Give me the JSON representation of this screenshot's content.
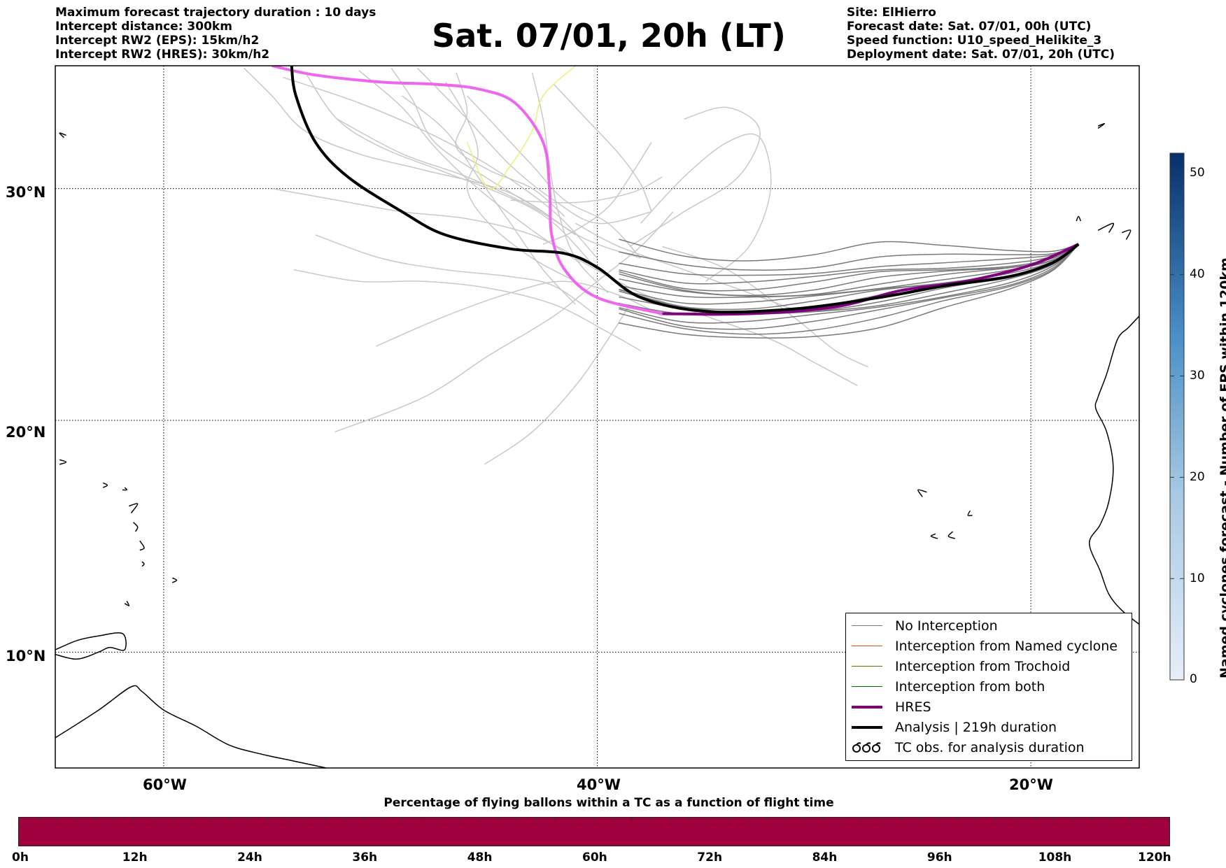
{
  "header": {
    "left_lines": [
      "Maximum forecast trajectory duration : 10 days",
      "Intercept distance: 300km",
      "Intercept RW2 (EPS):  15km/h2",
      "Intercept RW2 (HRES): 30km/h2"
    ],
    "title": "Sat. 07/01, 20h (LT)",
    "right_lines": [
      "Site: ElHierro",
      "Forecast date: Sat. 07/01, 00h (UTC)",
      "Speed function: U10_speed_Helikite_3",
      "Deployment date: Sat. 07/01, 20h (UTC)"
    ]
  },
  "map": {
    "lon_range": [
      -65,
      -15
    ],
    "lat_range": [
      5,
      35.3
    ],
    "lat_labels": [
      "30°N",
      "20°N",
      "10°N"
    ],
    "lat_values": [
      30,
      20,
      10
    ],
    "lon_labels": [
      "60°W",
      "40°W",
      "20°W"
    ],
    "lon_values": [
      -60,
      -40,
      -20
    ],
    "colors": {
      "no_interception": "#7a7a7a",
      "eps_far": "#c8c8c8",
      "hres": "#800080",
      "hres_early": "#ee66ee",
      "analysis": "#000000",
      "yellow_track": "#eeee77"
    },
    "analysis_track": [
      [
        -54.1,
        35.3
      ],
      [
        -53.9,
        34
      ],
      [
        -53,
        32
      ],
      [
        -51.5,
        30.5
      ],
      [
        -49,
        29
      ],
      [
        -47,
        28
      ],
      [
        -44,
        27.4
      ],
      [
        -41.5,
        27.2
      ],
      [
        -40,
        26.6
      ],
      [
        -38,
        25.3
      ],
      [
        -35,
        24.7
      ],
      [
        -31,
        24.8
      ],
      [
        -27,
        25.3
      ],
      [
        -24,
        25.8
      ],
      [
        -21,
        26.2
      ],
      [
        -19,
        26.8
      ],
      [
        -17.8,
        27.6
      ]
    ],
    "hres_track": [
      [
        -55,
        35.3
      ],
      [
        -53,
        34.9
      ],
      [
        -50,
        34.6
      ],
      [
        -47.5,
        34.5
      ],
      [
        -45.5,
        34.3
      ],
      [
        -43.8,
        33.7
      ],
      [
        -42.5,
        32
      ],
      [
        -42.2,
        30
      ],
      [
        -42.1,
        28
      ],
      [
        -41.5,
        26.5
      ],
      [
        -40,
        25.3
      ],
      [
        -37,
        24.6
      ],
      [
        -33,
        24.6
      ],
      [
        -29,
        24.9
      ],
      [
        -26,
        25.6
      ],
      [
        -23,
        26
      ],
      [
        -20,
        26.7
      ],
      [
        -17.8,
        27.6
      ]
    ]
  },
  "colorbar": {
    "title": "Named cyclones forecast - Number of EPS within 120km",
    "ticks": [
      "0",
      "10",
      "20",
      "30",
      "40",
      "50"
    ],
    "max": 52
  },
  "legend": {
    "items": [
      {
        "label": "No Interception",
        "color": "#7a7a7a",
        "width": 1.5
      },
      {
        "label": "Interception from Named cyclone",
        "color": "#e8501a",
        "width": 1.5
      },
      {
        "label": "Interception from Trochoid",
        "color": "#6b6b00",
        "width": 1.5
      },
      {
        "label": "Interception from both",
        "color": "#007000",
        "width": 1.5
      },
      {
        "label": "HRES",
        "color": "#800080",
        "width": 4
      },
      {
        "label": "Analysis | 219h duration",
        "color": "#000000",
        "width": 4
      }
    ],
    "tc_obs_label": "TC obs. for analysis duration"
  },
  "percentage_bar": {
    "title": "Percentage of flying ballons within a TC as a function of flight time",
    "ticks": [
      "0h",
      "12h",
      "24h",
      "36h",
      "48h",
      "60h",
      "72h",
      "84h",
      "96h",
      "108h",
      "120h"
    ],
    "color": "#a0003c"
  }
}
